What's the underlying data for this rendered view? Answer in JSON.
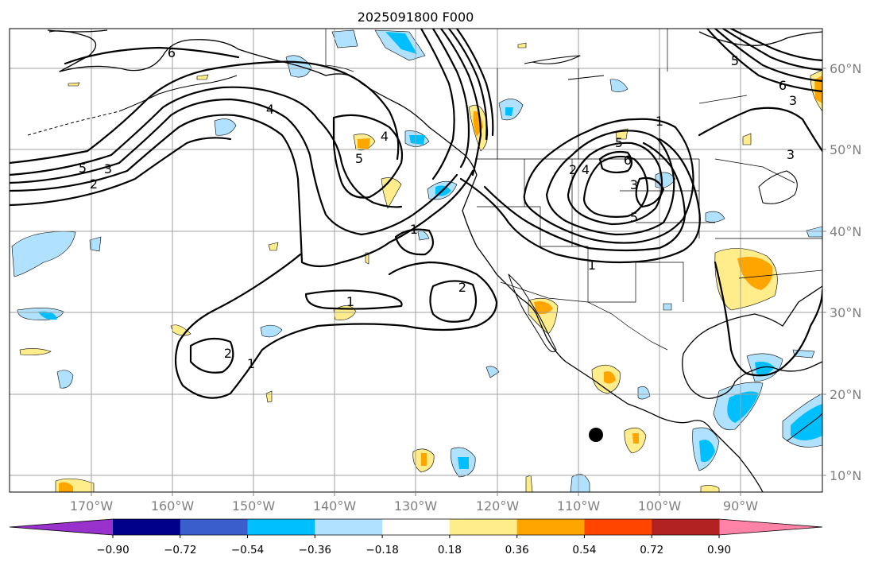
{
  "title": "2025091800 F000",
  "lat_labels": [
    "60°N",
    "50°N",
    "40°N",
    "30°N",
    "20°N",
    "10°N"
  ],
  "lon_labels": [
    "170°W",
    "160°W",
    "150°W",
    "140°W",
    "130°W",
    "120°W",
    "110°W",
    "100°W",
    "90°W"
  ],
  "colorbar": {
    "tick_labels": [
      "−0.90",
      "−0.72",
      "−0.54",
      "−0.36",
      "−0.18",
      "0.18",
      "0.36",
      "0.54",
      "0.72",
      "0.90"
    ],
    "colors": [
      "#9932cc",
      "#00008b",
      "#3a5fcd",
      "#00bfff",
      "#b0e2ff",
      "#ffffff",
      "#ffec8b",
      "#ffa500",
      "#ff4500",
      "#b22222",
      "#ff83a6"
    ]
  },
  "contour_labels": [
    "6",
    "5",
    "3",
    "2",
    "4",
    "5",
    "4",
    "1",
    "1",
    "2",
    "2",
    "1",
    "5",
    "6",
    "3",
    "2",
    "1",
    "1",
    "5",
    "6",
    "3",
    "3",
    "5",
    "4"
  ],
  "fill_colors": {
    "light_blue": "#b0e2ff",
    "deep_sky_blue": "#00bfff",
    "light_yellow": "#ffec8b",
    "orange": "#ffa500"
  },
  "marker_color": "#000000"
}
